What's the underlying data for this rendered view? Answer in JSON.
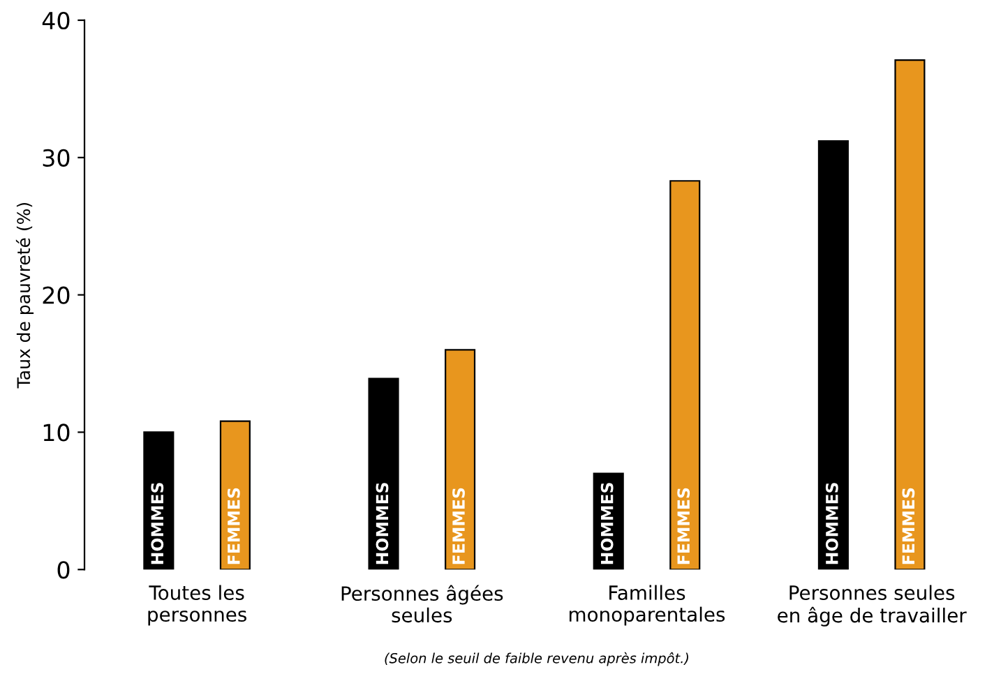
{
  "chart_data": {
    "type": "bar",
    "ylabel": "Taux de pauvreté (%)",
    "categories": [
      "Toutes les\npersonnes",
      "Personnes âgées\nseules",
      "Familles\nmonoparentales",
      "Personnes seules\nen âge de travailler"
    ],
    "series": [
      {
        "name": "HOMMES",
        "color": "#000000",
        "values": [
          10.0,
          13.9,
          7.0,
          31.2
        ]
      },
      {
        "name": "FEMMES",
        "color": "#e8961e",
        "values": [
          10.8,
          16.0,
          28.3,
          37.1
        ]
      }
    ],
    "ylim": [
      0,
      40
    ],
    "yticks": [
      0,
      10,
      20,
      30,
      40
    ],
    "grid": false,
    "legend": false,
    "annotations": [
      "(Selon le seuil de faible revenu après impôt.)"
    ]
  }
}
